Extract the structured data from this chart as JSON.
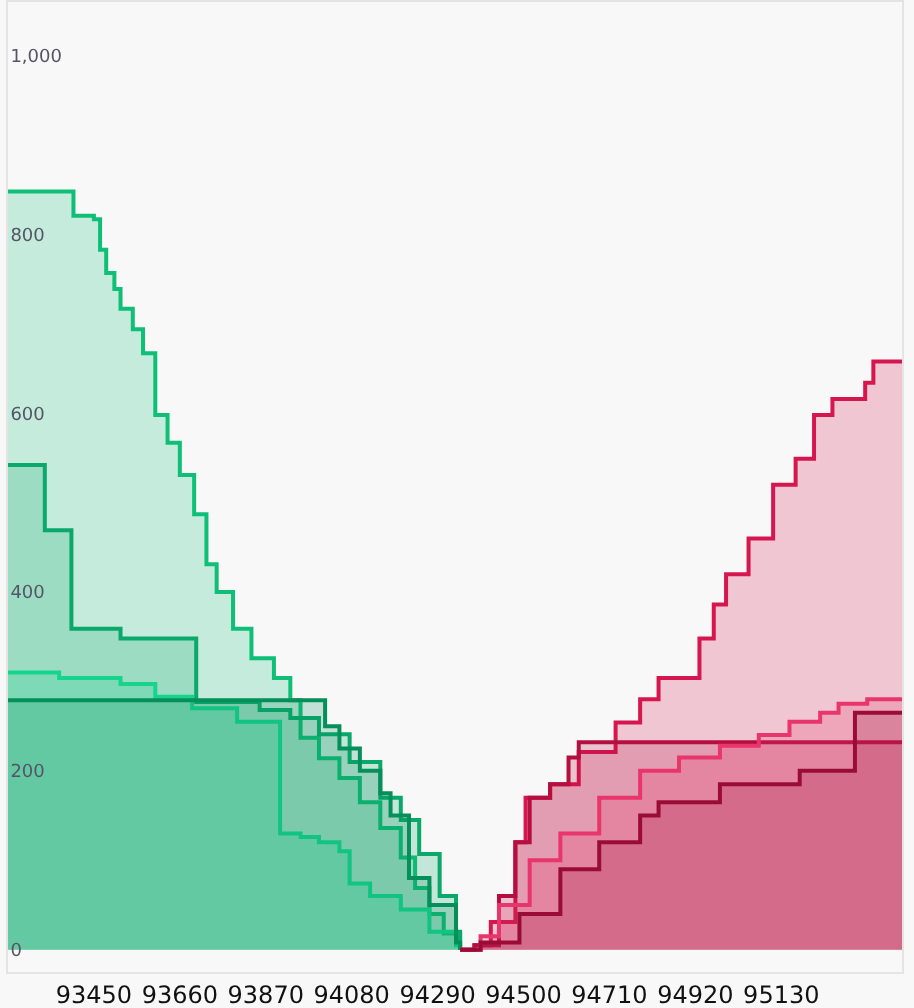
{
  "chart_data": {
    "type": "area",
    "grid": false,
    "marker": "none",
    "xlim": [
      93240,
      95425
    ],
    "xticks": [
      93450,
      93660,
      93870,
      94080,
      94290,
      94500,
      94710,
      94920,
      95130
    ],
    "ylim": [
      -25,
      1060
    ],
    "yticks": [
      0,
      200,
      400,
      600,
      800,
      {
        "value": 1000,
        "label": "1,000"
      }
    ],
    "series": [
      {
        "color": "#0fbf78",
        "x": [
          93240,
          93400,
          93400,
          93450,
          93450,
          93465,
          93465,
          93480,
          93480,
          93500,
          93500,
          93515,
          93515,
          93545,
          93545,
          93570,
          93570,
          93600,
          93600,
          93630,
          93630,
          93660,
          93660,
          93695,
          93695,
          93725,
          93725,
          93750,
          93750,
          93790,
          93790,
          93835,
          93835,
          93890,
          93890,
          93930,
          93930,
          93955,
          93955,
          94000,
          94000,
          94050,
          94050,
          94100,
          94100,
          94150,
          94150,
          94200,
          94200,
          94235,
          94235,
          94270,
          94270,
          94305,
          94305,
          94345,
          94345
        ],
        "values": [
          848,
          848,
          821,
          821,
          817,
          817,
          783,
          783,
          757,
          757,
          739,
          739,
          717,
          717,
          694,
          694,
          667,
          667,
          598,
          598,
          567,
          567,
          531,
          531,
          487,
          487,
          431,
          431,
          400,
          400,
          359,
          359,
          326,
          326,
          304,
          304,
          279,
          279,
          237,
          237,
          214,
          214,
          192,
          192,
          165,
          165,
          136,
          136,
          103,
          103,
          69,
          69,
          40,
          40,
          18,
          18,
          0
        ]
      },
      {
        "color": "#0aa86a",
        "x": [
          93240,
          93330,
          93330,
          93395,
          93395,
          93515,
          93515,
          93700,
          93700,
          93855,
          93855,
          93930,
          93930,
          94000,
          94000,
          94075,
          94075,
          94150,
          94150,
          94200,
          94200,
          94245,
          94245,
          94295,
          94295,
          94335,
          94335,
          94345,
          94345
        ],
        "values": [
          542,
          542,
          469,
          469,
          359,
          359,
          348,
          348,
          277,
          277,
          268,
          268,
          259,
          259,
          241,
          241,
          210,
          210,
          170,
          170,
          145,
          145,
          107,
          107,
          60,
          60,
          20,
          20,
          0
        ]
      },
      {
        "color": "#16d48c",
        "x": [
          93240,
          93365,
          93365,
          93515,
          93515,
          93600,
          93600,
          93690,
          93690,
          93800,
          93800,
          93905,
          93905,
          93955,
          93955,
          94000,
          94000,
          94050,
          94050,
          94075,
          94075,
          94125,
          94125,
          94200,
          94200,
          94270,
          94270,
          94335,
          94335,
          94345,
          94345
        ],
        "values": [
          310,
          310,
          304,
          304,
          297,
          297,
          283,
          283,
          270,
          270,
          255,
          255,
          130,
          130,
          126,
          126,
          120,
          120,
          110,
          110,
          74,
          74,
          60,
          60,
          45,
          45,
          20,
          20,
          5,
          5,
          0
        ]
      },
      {
        "color": "#058f5a",
        "x": [
          93240,
          94015,
          94015,
          94050,
          94050,
          94100,
          94100,
          94150,
          94150,
          94175,
          94175,
          94220,
          94220,
          94270,
          94270,
          94335,
          94335,
          94345,
          94345
        ],
        "values": [
          279,
          279,
          250,
          250,
          225,
          225,
          200,
          200,
          175,
          175,
          150,
          150,
          80,
          80,
          50,
          50,
          8,
          8,
          0
        ]
      },
      {
        "color": "#d6174f",
        "x": [
          94345,
          94380,
          94380,
          94420,
          94420,
          94480,
          94480,
          94505,
          94505,
          94565,
          94565,
          94635,
          94635,
          94725,
          94725,
          94785,
          94785,
          94830,
          94830,
          94930,
          94930,
          94965,
          94965,
          94995,
          94995,
          95050,
          95050,
          95110,
          95110,
          95165,
          95165,
          95210,
          95210,
          95255,
          95255,
          95335,
          95335,
          95355,
          95355,
          95425
        ],
        "values": [
          0,
          0,
          5,
          5,
          31,
          31,
          120,
          120,
          170,
          170,
          185,
          185,
          221,
          221,
          254,
          254,
          280,
          280,
          304,
          304,
          348,
          348,
          386,
          386,
          420,
          420,
          460,
          460,
          520,
          520,
          549,
          549,
          598,
          598,
          616,
          616,
          634,
          634,
          658,
          658
        ]
      },
      {
        "color": "#b50f40",
        "x": [
          94345,
          94380,
          94380,
          94440,
          94440,
          94480,
          94480,
          94515,
          94515,
          94565,
          94565,
          94610,
          94610,
          94635,
          94635,
          95425
        ],
        "values": [
          0,
          0,
          5,
          5,
          60,
          60,
          120,
          120,
          170,
          170,
          185,
          185,
          215,
          215,
          232,
          232
        ]
      },
      {
        "color": "#e8356b",
        "x": [
          94345,
          94395,
          94395,
          94440,
          94440,
          94515,
          94515,
          94590,
          94590,
          94685,
          94685,
          94785,
          94785,
          94880,
          94880,
          94980,
          94980,
          95075,
          95075,
          95150,
          95150,
          95225,
          95225,
          95270,
          95270,
          95340,
          95340,
          95425
        ],
        "values": [
          0,
          0,
          15,
          15,
          50,
          50,
          100,
          100,
          130,
          130,
          170,
          170,
          200,
          200,
          215,
          215,
          228,
          228,
          240,
          240,
          255,
          255,
          265,
          265,
          275,
          275,
          280,
          280
        ]
      },
      {
        "color": "#9a0c36",
        "x": [
          94345,
          94395,
          94395,
          94490,
          94490,
          94590,
          94590,
          94685,
          94685,
          94785,
          94785,
          94830,
          94830,
          94980,
          94980,
          95175,
          95175,
          95310,
          95310,
          95425
        ],
        "values": [
          0,
          0,
          8,
          8,
          40,
          40,
          90,
          90,
          120,
          120,
          150,
          150,
          165,
          165,
          185,
          185,
          200,
          200,
          265,
          265
        ]
      }
    ]
  }
}
